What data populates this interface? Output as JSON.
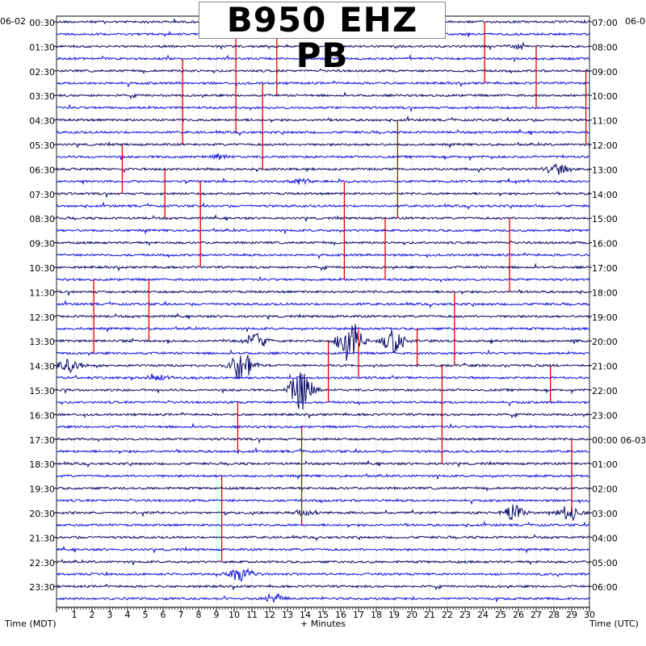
{
  "chart_data": {
    "type": "line",
    "title": "B950 EHZ PB",
    "xlabel": "+ Minutes",
    "ylabel_left": "Time (MDT)",
    "ylabel_right": "Time (UTC)",
    "date_left_top": "06-02",
    "date_right_top": "06-0",
    "x_ticks": [
      "1",
      "2",
      "3",
      "4",
      "5",
      "6",
      "7",
      "8",
      "9",
      "10",
      "11",
      "12",
      "13",
      "14",
      "15",
      "16",
      "17",
      "18",
      "19",
      "20",
      "21",
      "22",
      "23",
      "24",
      "25",
      "26",
      "27",
      "28",
      "29",
      "30"
    ],
    "xlim": [
      0,
      30
    ],
    "left_ticks": [
      "00:30",
      "01:30",
      "02:30",
      "03:30",
      "04:30",
      "05:30",
      "06:30",
      "07:30",
      "08:30",
      "09:30",
      "10:30",
      "11:30",
      "12:30",
      "13:30",
      "14:30",
      "15:30",
      "16:30",
      "17:30",
      "18:30",
      "19:30",
      "20:30",
      "21:30",
      "22:30",
      "23:30"
    ],
    "right_ticks": [
      "07:00",
      "08:00",
      "09:00",
      "10:00",
      "11:00",
      "12:00",
      "13:00",
      "14:00",
      "15:00",
      "16:00",
      "17:00",
      "18:00",
      "19:00",
      "20:00",
      "21:00",
      "22:00",
      "23:00",
      "00:00 06-03",
      "01:00",
      "02:00",
      "03:00",
      "04:00",
      "05:00",
      "06:00"
    ],
    "trace_count": 48,
    "trace_colors": [
      "#0a0a66",
      "#1010dd"
    ],
    "marker_color": "#dd0000",
    "grid": true,
    "events": [
      {
        "trace": 26,
        "minute": 16.5,
        "amplitude": 30
      },
      {
        "trace": 26,
        "minute": 19.0,
        "amplitude": 16
      },
      {
        "trace": 26,
        "minute": 11.2,
        "amplitude": 10
      },
      {
        "trace": 28,
        "minute": 10.4,
        "amplitude": 22
      },
      {
        "trace": 30,
        "minute": 13.8,
        "amplitude": 26
      },
      {
        "trace": 28,
        "minute": 0.8,
        "amplitude": 10
      },
      {
        "trace": 29,
        "minute": 5.8,
        "amplitude": 4
      },
      {
        "trace": 40,
        "minute": 25.8,
        "amplitude": 10
      },
      {
        "trace": 40,
        "minute": 28.8,
        "amplitude": 11
      },
      {
        "trace": 40,
        "minute": 14.0,
        "amplitude": 4
      },
      {
        "trace": 45,
        "minute": 10.4,
        "amplitude": 11
      },
      {
        "trace": 47,
        "minute": 12.4,
        "amplitude": 6
      },
      {
        "trace": 12,
        "minute": 28.2,
        "amplitude": 7
      },
      {
        "trace": 13,
        "minute": 13.8,
        "amplitude": 4
      },
      {
        "trace": 2,
        "minute": 26.0,
        "amplitude": 4
      },
      {
        "trace": 11,
        "minute": 9.0,
        "amplitude": 4
      }
    ],
    "marker_minutes": [
      3.7,
      5.2,
      7.1,
      8.1,
      9.3,
      10.2,
      11.6,
      12.4,
      13.8,
      15.3,
      16.2,
      17.0,
      18.5,
      19.2,
      20.3,
      21.7,
      22.4,
      24.1,
      25.5,
      27.0,
      27.8,
      29.0,
      29.8,
      2.1,
      6.1,
      10.1
    ]
  }
}
